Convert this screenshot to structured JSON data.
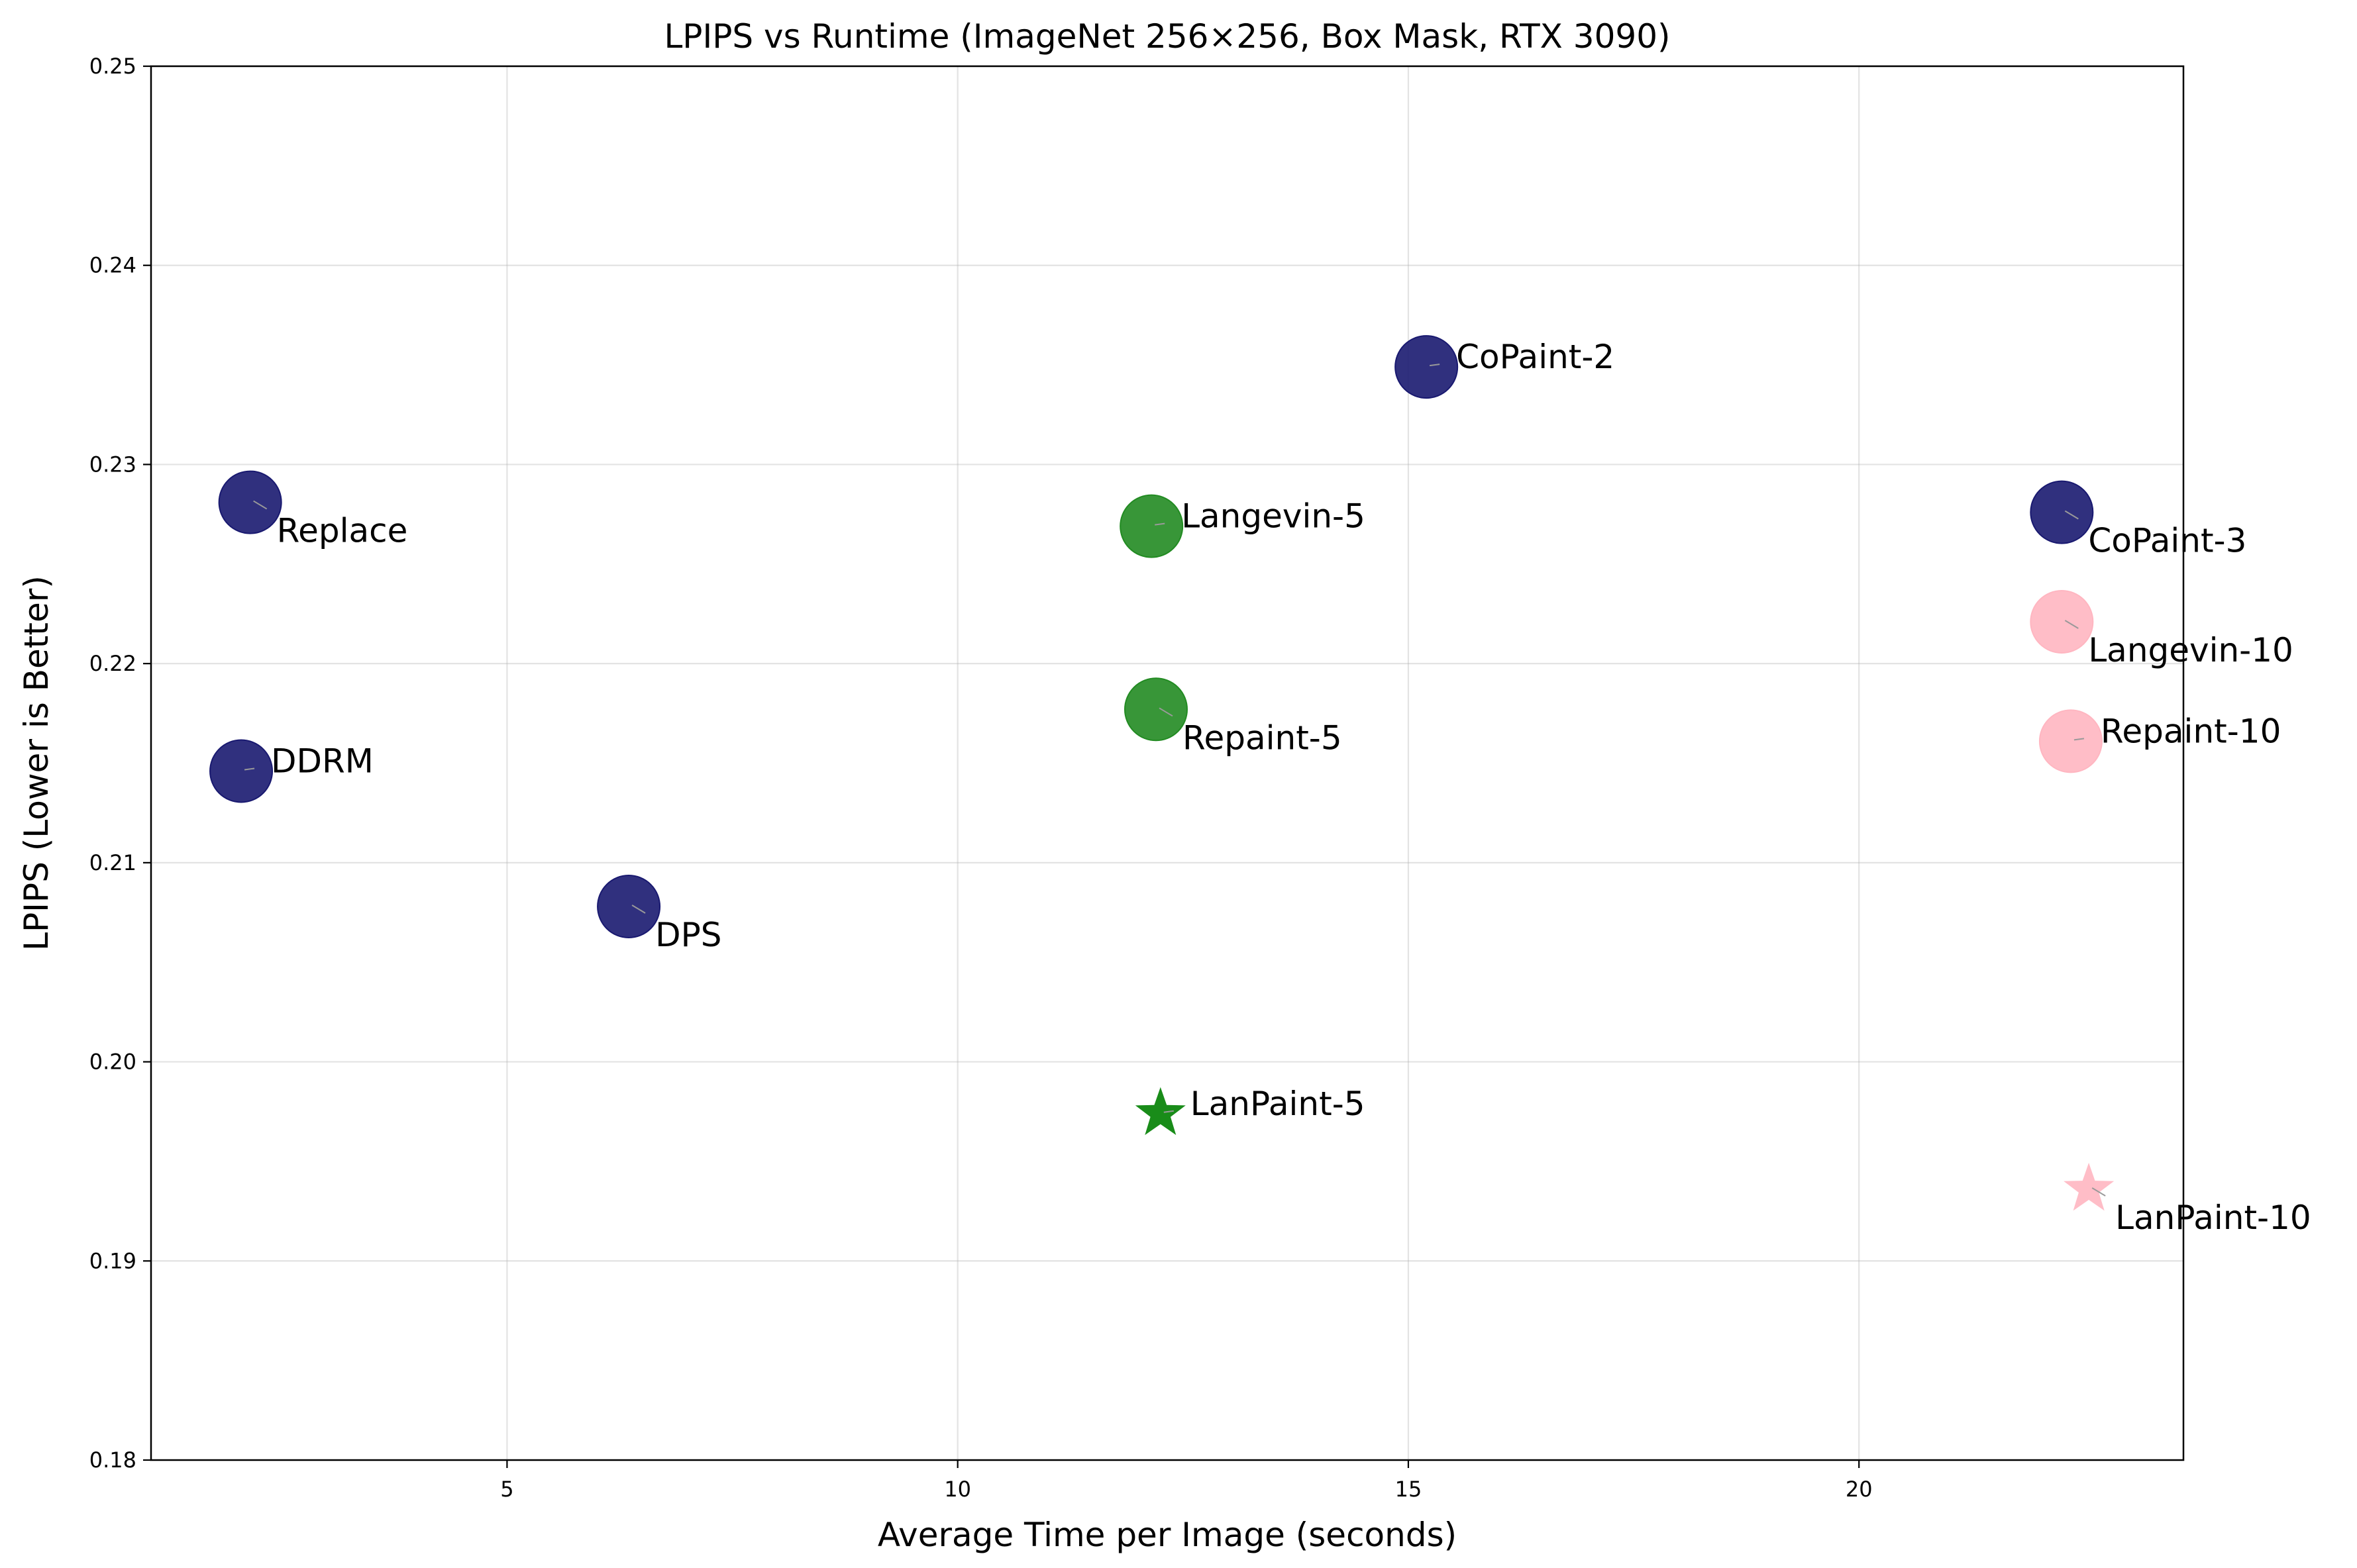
{
  "chart_data": {
    "type": "scatter",
    "title": "LPIPS vs Runtime (ImageNet 256×256, Box Mask, RTX 3090)",
    "xlabel": "Average Time per Image (seconds)",
    "ylabel": "LPIPS (Lower is Better)",
    "xlim": [
      1.05,
      23.6
    ],
    "ylim": [
      0.18,
      0.25
    ],
    "xticks": [
      5,
      10,
      15,
      20
    ],
    "yticks": [
      0.18,
      0.19,
      0.2,
      0.21,
      0.22,
      0.23,
      0.24,
      0.25
    ],
    "xtick_labels": [
      "5",
      "10",
      "15",
      "20"
    ],
    "ytick_labels": [
      "0.18",
      "0.19",
      "0.20",
      "0.21",
      "0.22",
      "0.23",
      "0.24",
      "0.25"
    ],
    "grid": true,
    "colors": {
      "baseline": "#191970",
      "steps5": "#228B22",
      "steps10": "#FFB6C1",
      "lanpaint5": "#008000"
    },
    "points": [
      {
        "label": "Replace",
        "x": 2.15,
        "y": 0.2281,
        "marker": "circle",
        "color": "#191970",
        "label_pos": "below-right"
      },
      {
        "label": "DDRM",
        "x": 2.05,
        "y": 0.2146,
        "marker": "circle",
        "color": "#191970",
        "label_pos": "right"
      },
      {
        "label": "DPS",
        "x": 6.35,
        "y": 0.2078,
        "marker": "circle",
        "color": "#191970",
        "label_pos": "below-right"
      },
      {
        "label": "CoPaint-2",
        "x": 15.2,
        "y": 0.2349,
        "marker": "circle",
        "color": "#191970",
        "label_pos": "right"
      },
      {
        "label": "CoPaint-3",
        "x": 22.25,
        "y": 0.2276,
        "marker": "circle",
        "color": "#191970",
        "label_pos": "below-right"
      },
      {
        "label": "Langevin-5",
        "x": 12.15,
        "y": 0.2269,
        "marker": "circle",
        "color": "#228B22",
        "label_pos": "right"
      },
      {
        "label": "Repaint-5",
        "x": 12.2,
        "y": 0.2177,
        "marker": "circle",
        "color": "#228B22",
        "label_pos": "below-right"
      },
      {
        "label": "LanPaint-5",
        "x": 12.25,
        "y": 0.1974,
        "marker": "star",
        "color": "#008000",
        "label_pos": "right"
      },
      {
        "label": "Langevin-10",
        "x": 22.25,
        "y": 0.2221,
        "marker": "circle",
        "color": "#FFB6C1",
        "label_pos": "below-right"
      },
      {
        "label": "Repaint-10",
        "x": 22.35,
        "y": 0.2161,
        "marker": "circle",
        "color": "#FFB6C1",
        "label_pos": "right"
      },
      {
        "label": "LanPaint-10",
        "x": 22.55,
        "y": 0.1936,
        "marker": "star",
        "color": "#FFB6C1",
        "label_pos": "below-right"
      }
    ]
  }
}
